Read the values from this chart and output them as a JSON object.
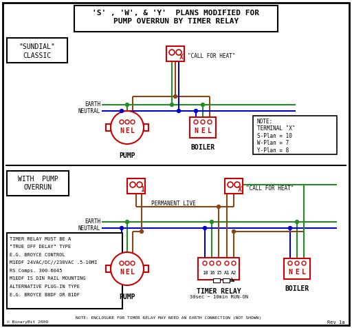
{
  "title_line1": "'S' , 'W', & 'Y'  PLANS MODIFIED FOR",
  "title_line2": "PUMP OVERRUN BY TIMER RELAY",
  "bg_color": "#ffffff",
  "border_color": "#000000",
  "red_color": "#cc0000",
  "green_color": "#228B22",
  "blue_color": "#0000cc",
  "brown_color": "#8B4513",
  "sundial_line1": "\"SUNDIAL\"",
  "sundial_line2": "CLASSIC",
  "with_pump_line1": "WITH  PUMP",
  "with_pump_line2": "OVERRUN",
  "note_text": "NOTE:\nTERMINAL \"X\"\nS-Plan = 10\nW-Plan = 7\nY-Plan = 8",
  "timer_note_lines": [
    "TIMER RELAY MUST BE A",
    "\"TRUE OFF DELAY\" TYPE",
    "E.G. BROYCE CONTROL",
    "M1EDF 24VAC/DC//230VAC .5-10MI",
    "RS Comps. 300-6045",
    "M1EDF IS DIN RAIL MOUNTING",
    "ALTERNATIVE PLUG-IN TYPE",
    "E.G. BROYCE B8DF OR B1DF"
  ],
  "bottom_note": "NOTE: ENCLOSURE FOR TIMER RELAY MAY NEED AN EARTH CONNECTION (NOT SHOWN)",
  "call_heat": "\"CALL FOR HEAT\"",
  "permanent_live": "PERMANENT LIVE",
  "earth_label": "EARTH",
  "neutral_label": "NEUTRAL",
  "pump_label": "PUMP",
  "boiler_label": "BOILER",
  "timer_relay_label": "TIMER RELAY",
  "timer_relay_sub": "30sec ~ 10min RUN-ON",
  "rev": "Rev 1a",
  "copyright": "© BinaryBit 2009"
}
